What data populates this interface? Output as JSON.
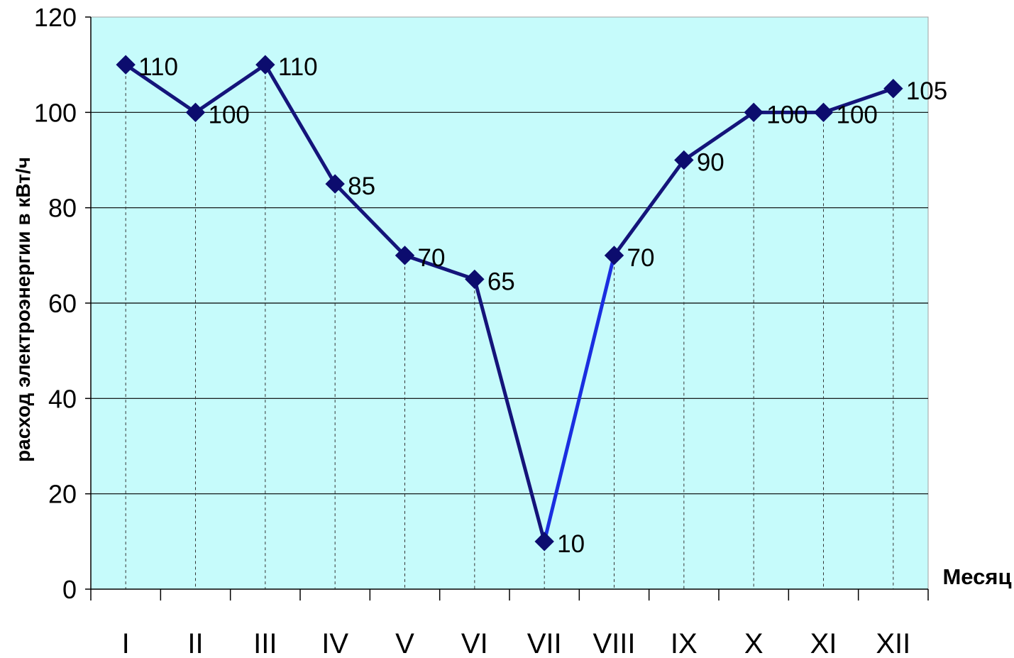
{
  "chart_data": {
    "type": "line",
    "title": "",
    "xlabel": "Месяц",
    "ylabel": "расход электроэнергии в кВт/ч",
    "categories": [
      "I",
      "II",
      "III",
      "IV",
      "V",
      "VI",
      "VII",
      "VIII",
      "IX",
      "X",
      "XI",
      "XII"
    ],
    "series": [
      {
        "values": [
          110,
          100,
          110,
          85,
          70,
          65,
          10,
          70,
          90,
          100,
          100,
          105
        ]
      }
    ],
    "data_labels": [
      "110",
      "100",
      "110",
      "85",
      "70",
      "65",
      "10",
      "70",
      "90",
      "100",
      "100",
      "105"
    ],
    "ylim": [
      0,
      120
    ],
    "yticks": [
      "0",
      "20",
      "40",
      "60",
      "80",
      "100",
      "120"
    ],
    "grid": "horizontal",
    "drop_lines": true,
    "legend": "none",
    "colors": {
      "plot_background": "#c6fbfb",
      "line": "#14147a",
      "highlight_segment": "#1a2ee0",
      "marker": "#0c0c6e",
      "gridline": "#000000"
    }
  }
}
